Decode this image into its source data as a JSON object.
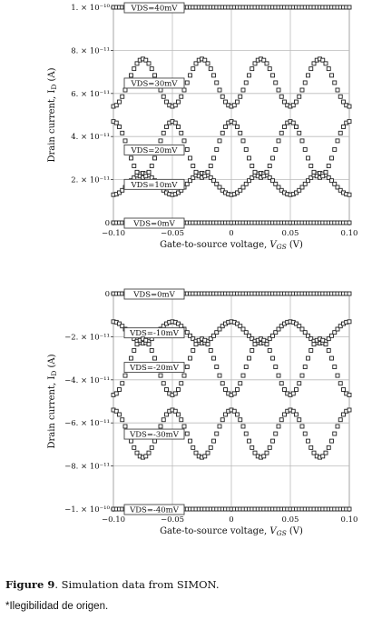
{
  "chart_data": [
    {
      "type": "scatter",
      "title": "",
      "xlabel_main": "Gate-to-source voltage, ",
      "xlabel_var": "V",
      "xlabel_sub": "GS",
      "xlabel_unit": " (V)",
      "ylabel_main": "Drain current, I",
      "ylabel_sub": "D",
      "ylabel_unit": " (A)",
      "xlim": [
        -0.1,
        0.1
      ],
      "ylim": [
        0,
        1e-10
      ],
      "grid": true,
      "x_ticks": [
        {
          "value": -0.1,
          "label": "−0.10"
        },
        {
          "value": -0.05,
          "label": "−0.05"
        },
        {
          "value": 0,
          "label": "0"
        },
        {
          "value": 0.05,
          "label": "0.05"
        },
        {
          "value": 0.1,
          "label": "0.10"
        }
      ],
      "y_ticks": [
        {
          "value": 0,
          "label": "0"
        },
        {
          "value": 2e-11,
          "label": "2. × 10⁻¹¹"
        },
        {
          "value": 4e-11,
          "label": "4. × 10⁻¹¹"
        },
        {
          "value": 6e-11,
          "label": "6. × 10⁻¹¹"
        },
        {
          "value": 8e-11,
          "label": "8. × 10⁻¹¹"
        },
        {
          "value": 1e-10,
          "label": "1. × 10⁻¹⁰"
        }
      ],
      "series": [
        {
          "name": "VDS=0mV",
          "center": 0,
          "amplitude": 0,
          "period": 0.05,
          "phase": 0
        },
        {
          "name": "VDS=10mV",
          "center": 1.8e-11,
          "amplitude": 5e-12,
          "period": 0.05,
          "phase": 0.0125
        },
        {
          "name": "VDS=20mV",
          "center": 3.4e-11,
          "amplitude": 1.3e-11,
          "period": 0.05,
          "phase": 0.0375
        },
        {
          "name": "VDS=30mV",
          "center": 6.5e-11,
          "amplitude": 1.1e-11,
          "period": 0.05,
          "phase": -0.0375
        },
        {
          "name": "VDS=40mV",
          "center": 1e-10,
          "amplitude": 0,
          "period": 0.05,
          "phase": 0
        }
      ]
    },
    {
      "type": "scatter",
      "title": "",
      "xlabel_main": "Gate-to-source voltage, ",
      "xlabel_var": "V",
      "xlabel_sub": "GS",
      "xlabel_unit": " (V)",
      "ylabel_main": "Drain current, I",
      "ylabel_sub": "D",
      "ylabel_unit": " (A)",
      "xlim": [
        -0.1,
        0.1
      ],
      "ylim": [
        -1e-10,
        0
      ],
      "grid": true,
      "x_ticks": [
        {
          "value": -0.1,
          "label": "−0.10"
        },
        {
          "value": -0.05,
          "label": "−0.05"
        },
        {
          "value": 0,
          "label": "0"
        },
        {
          "value": 0.05,
          "label": "0.05"
        },
        {
          "value": 0.1,
          "label": "0.10"
        }
      ],
      "y_ticks": [
        {
          "value": 0,
          "label": "0"
        },
        {
          "value": -2e-11,
          "label": "−2. × 10⁻¹¹"
        },
        {
          "value": -4e-11,
          "label": "−4. × 10⁻¹¹"
        },
        {
          "value": -6e-11,
          "label": "−6. × 10⁻¹¹"
        },
        {
          "value": -8e-11,
          "label": "−8. × 10⁻¹¹"
        },
        {
          "value": -1e-10,
          "label": "−1. × 10⁻¹⁰"
        }
      ],
      "series": [
        {
          "name": "VDS=0mV",
          "center": 0,
          "amplitude": 0,
          "period": 0.05,
          "phase": 0
        },
        {
          "name": "VDS=-10mV",
          "center": -1.8e-11,
          "amplitude": 5e-12,
          "period": 0.05,
          "phase": -0.0125
        },
        {
          "name": "VDS=-20mV",
          "center": -3.4e-11,
          "amplitude": 1.3e-11,
          "period": 0.05,
          "phase": -0.0375
        },
        {
          "name": "VDS=-30mV",
          "center": -6.5e-11,
          "amplitude": 1.1e-11,
          "period": 0.05,
          "phase": -0.0125
        },
        {
          "name": "VDS=-40mV",
          "center": -1e-10,
          "amplitude": 0,
          "period": 0.05,
          "phase": 0
        }
      ]
    }
  ],
  "caption": {
    "figure_label": "Figure 9",
    "text": ". Simulation data from SIMON."
  },
  "note": "*Ilegibilidad de origen."
}
